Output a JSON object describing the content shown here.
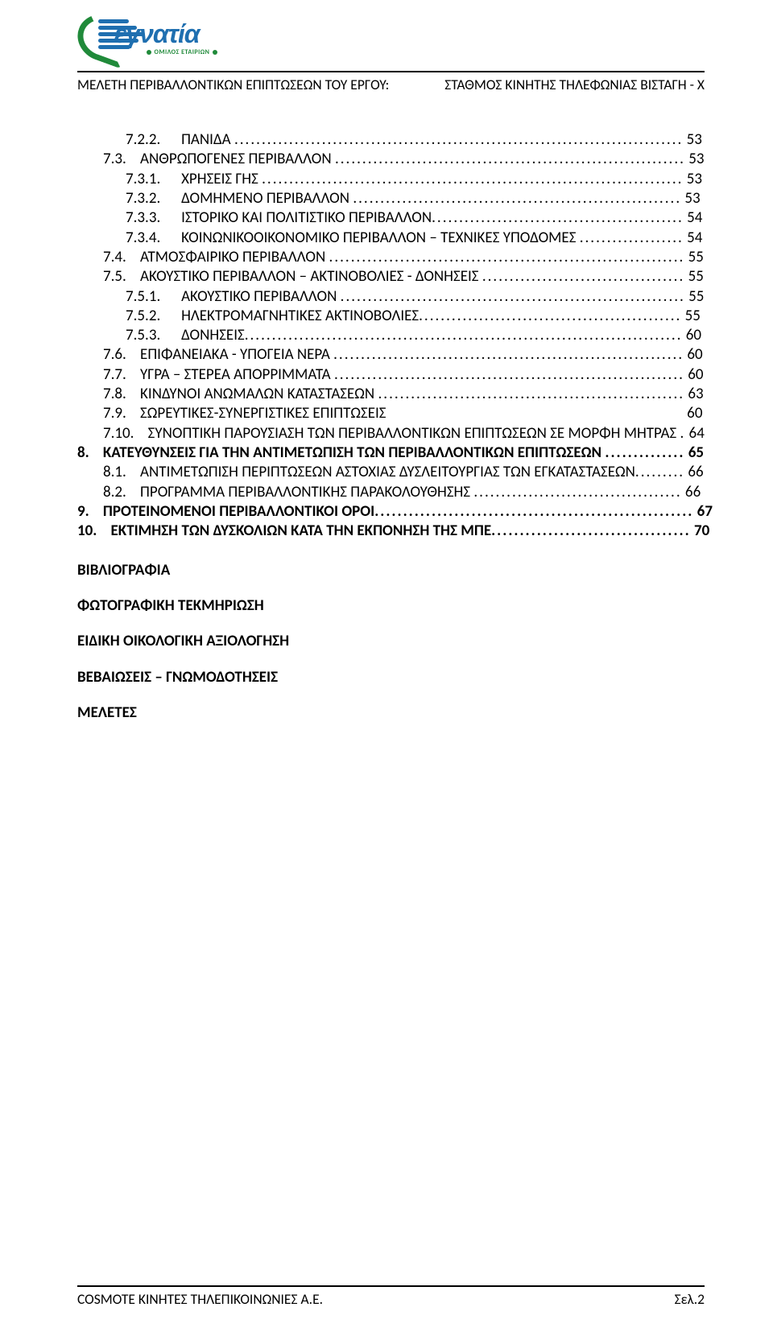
{
  "logo": {
    "word": "εγνατία",
    "subtitle": "ΟΜΙΛΟΣ ΕΤΑΙΡΙΩΝ",
    "blue": "#1f6fb0",
    "green": "#208a3a"
  },
  "header": {
    "left": "ΜΕΛΕΤΗ ΠΕΡΙΒΑΛΛΟΝΤΙΚΩΝ ΕΠΙΠΤΩΣΕΩΝ ΤΟΥ ΕΡΓΟΥ:",
    "right": "ΣΤΑΘΜΟΣ ΚΙΝΗΤΗΣ ΤΗΛΕΦΩΝΙΑΣ ΒΙΣΤΑΓΗ - Χ"
  },
  "toc": [
    {
      "num": "7.2.2.",
      "title": "ΠΑΝΙΔΑ",
      "page": "53",
      "indent": 2,
      "bold": false,
      "dots": true,
      "gap_after_num": 6,
      "gap_before_dots": 1
    },
    {
      "num": "7.3.",
      "title": "ΑΝΘΡΩΠΟΓΕΝΕΣ ΠΕΡΙΒΑΛΛΟΝ",
      "page": "53",
      "indent": 1,
      "bold": false,
      "dots": true,
      "gap_after_num": 4,
      "gap_before_dots": 1
    },
    {
      "num": "7.3.1.",
      "title": "ΧΡΗΣΕΙΣ ΓΗΣ",
      "page": "53",
      "indent": 2,
      "bold": false,
      "dots": true,
      "gap_after_num": 6,
      "gap_before_dots": 1
    },
    {
      "num": "7.3.2.",
      "title": "ΔΟΜΗΜΕΝΟ ΠΕΡΙΒΑΛΛΟΝ",
      "page": "53",
      "indent": 2,
      "bold": false,
      "dots": true,
      "gap_after_num": 6,
      "gap_before_dots": 1
    },
    {
      "num": "7.3.3.",
      "title": "ΙΣΤΟΡΙΚΟ ΚΑΙ ΠΟΛΙΤΙΣΤΙΚΟ ΠΕΡΙΒΑΛΛΟΝ",
      "page": "54",
      "indent": 2,
      "bold": false,
      "dots": true,
      "gap_after_num": 6,
      "gap_before_dots": 0
    },
    {
      "num": "7.3.4.",
      "title": "ΚΟΙΝΩΝΙΚΟΟΙΚΟΝΟΜΙΚΟ ΠΕΡΙΒΑΛΛΟΝ – ΤΕΧΝΙΚΕΣ ΥΠΟΔΟΜΕΣ",
      "page": "54",
      "indent": 2,
      "bold": false,
      "dots": true,
      "gap_after_num": 6,
      "gap_before_dots": 1
    },
    {
      "num": "7.4.",
      "title": "ΑΤΜΟΣΦΑΙΡΙΚΟ ΠΕΡΙΒΑΛΛΟΝ",
      "page": "55",
      "indent": 1,
      "bold": false,
      "dots": true,
      "gap_after_num": 4,
      "gap_before_dots": 1
    },
    {
      "num": "7.5.",
      "title": "ΑΚΟΥΣΤΙΚΟ ΠΕΡΙΒΑΛΛΟΝ – ΑΚΤΙΝΟΒΟΛΙΕΣ - ΔΟΝΗΣΕΙΣ",
      "page": "55",
      "indent": 1,
      "bold": false,
      "dots": true,
      "gap_after_num": 4,
      "gap_before_dots": 1
    },
    {
      "num": "7.5.1.",
      "title": "ΑΚΟΥΣΤΙΚΟ ΠΕΡΙΒΑΛΛΟΝ",
      "page": "55",
      "indent": 2,
      "bold": false,
      "dots": true,
      "gap_after_num": 6,
      "gap_before_dots": 1
    },
    {
      "num": "7.5.2.",
      "title": "ΗΛΕΚΤΡΟΜΑΓΝΗΤΙΚΕΣ ΑΚΤΙΝΟΒΟΛΙΕΣ",
      "page": "55",
      "indent": 2,
      "bold": false,
      "dots": true,
      "gap_after_num": 6,
      "gap_before_dots": 0
    },
    {
      "num": "7.5.3.",
      "title": "ΔΟΝΗΣΕΙΣ",
      "page": "60",
      "indent": 2,
      "bold": false,
      "dots": true,
      "gap_after_num": 6,
      "gap_before_dots": 0
    },
    {
      "num": "7.6.",
      "title": "ΕΠΙΦΑΝΕΙΑΚΑ - ΥΠΟΓΕΙΑ ΝΕΡΑ",
      "page": "60",
      "indent": 1,
      "bold": false,
      "dots": true,
      "gap_after_num": 4,
      "gap_before_dots": 1
    },
    {
      "num": "7.7.",
      "title": "ΥΓΡΑ – ΣΤΕΡΕΑ ΑΠΟΡΡΙΜΜΑΤΑ",
      "page": "60",
      "indent": 1,
      "bold": false,
      "dots": true,
      "gap_after_num": 4,
      "gap_before_dots": 1
    },
    {
      "num": "7.8.",
      "title": "ΚΙΝΔΥΝΟΙ ΑΝΩΜΑΛΩΝ ΚΑΤΑΣΤΑΣΕΩΝ",
      "page": "63",
      "indent": 1,
      "bold": false,
      "dots": true,
      "gap_after_num": 4,
      "gap_before_dots": 1
    },
    {
      "num": "7.9.",
      "title": "ΣΩΡΕΥΤΙΚΕΣ-ΣΥΝΕΡΓΙΣΤΙΚΕΣ ΕΠΙΠΤΩΣΕΙΣ",
      "page": "60",
      "indent": 1,
      "bold": false,
      "dots": false,
      "gap_after_num": 4,
      "gap_before_dots": 57
    },
    {
      "num": "7.10.",
      "title": "ΣΥΝΟΠΤΙΚΗ ΠΑΡΟΥΣΙΑΣΗ ΤΩΝ ΠΕΡΙΒΑΛΛΟΝΤΙΚΩΝ ΕΠΙΠΤΩΣΕΩΝ ΣΕ ΜΟΡΦΗ ΜΗΤΡΑΣ",
      "page": "64",
      "indent": 1,
      "bold": false,
      "dots": true,
      "gap_after_num": 4,
      "gap_before_dots": 1
    },
    {
      "num": "8.",
      "title": "ΚΑΤΕΥΘΥΝΣΕΙΣ ΓΙΑ ΤΗΝ ΑΝΤΙΜΕΤΩΠΙΣΗ ΤΩΝ ΠΕΡΙΒΑΛΛΟΝΤΙΚΩΝ ΕΠΙΠΤΩΣΕΩΝ",
      "page": "65",
      "indent": 0,
      "bold": true,
      "dots": true,
      "gap_after_num": 4,
      "gap_before_dots": 1
    },
    {
      "num": "8.1.",
      "title": "ΑΝΤΙΜΕΤΩΠΙΣΗ ΠΕΡΙΠΤΩΣΕΩΝ ΑΣΤΟΧΙΑΣ ΔΥΣΛΕΙΤΟΥΡΓΙΑΣ ΤΩΝ ΕΓΚΑΤΑΣΤΑΣΕΩΝ",
      "page": "66",
      "indent": 1,
      "bold": false,
      "dots": true,
      "gap_after_num": 4,
      "gap_before_dots": 0
    },
    {
      "num": "8.2.",
      "title": "ΠΡΟΓΡΑΜΜΑ ΠΕΡΙΒΑΛΛΟΝΤΙΚΗΣ ΠΑΡΑΚΟΛΟΥΘΗΣΗΣ",
      "page": "66",
      "indent": 1,
      "bold": false,
      "dots": true,
      "gap_after_num": 4,
      "gap_before_dots": 1
    },
    {
      "num": "9.",
      "title": "ΠΡΟΤΕΙΝΟΜΕΝΟΙ ΠΕΡΙΒΑΛΛΟΝΤΙΚΟΙ ΟΡΟΙ",
      "page": "67",
      "indent": 0,
      "bold": true,
      "dots": true,
      "gap_after_num": 4,
      "gap_before_dots": 0
    },
    {
      "num": "10.",
      "title": "ΕΚΤΙΜΗΣΗ ΤΩΝ ΔΥΣΚΟΛΙΩΝ ΚΑΤΑ ΤΗΝ ΕΚΠΟΝΗΣΗ ΤΗΣ ΜΠΕ",
      "page": "70",
      "indent": 0,
      "bold": true,
      "dots": true,
      "gap_after_num": 4,
      "gap_before_dots": 0
    }
  ],
  "appendix": [
    "ΒΙΒΛΙΟΓΡΑΦΙΑ",
    "ΦΩΤΟΓΡΑΦΙΚΗ ΤΕΚΜΗΡΙΩΣΗ",
    "ΕΙΔΙΚΗ ΟΙΚΟΛΟΓΙΚΗ ΑΞΙΟΛΟΓΗΣΗ",
    "ΒΕΒΑΙΩΣΕΙΣ – ΓΝΩΜΟΔΟΤΗΣΕΙΣ",
    "ΜΕΛΕΤΕΣ"
  ],
  "footer": {
    "left": "COSMOTE ΚΙΝΗΤΕΣ ΤΗΛΕΠΙΚΟΙΝΩΝΙΕΣ Α.Ε.",
    "right": "Σελ.2"
  },
  "dot_char": "."
}
